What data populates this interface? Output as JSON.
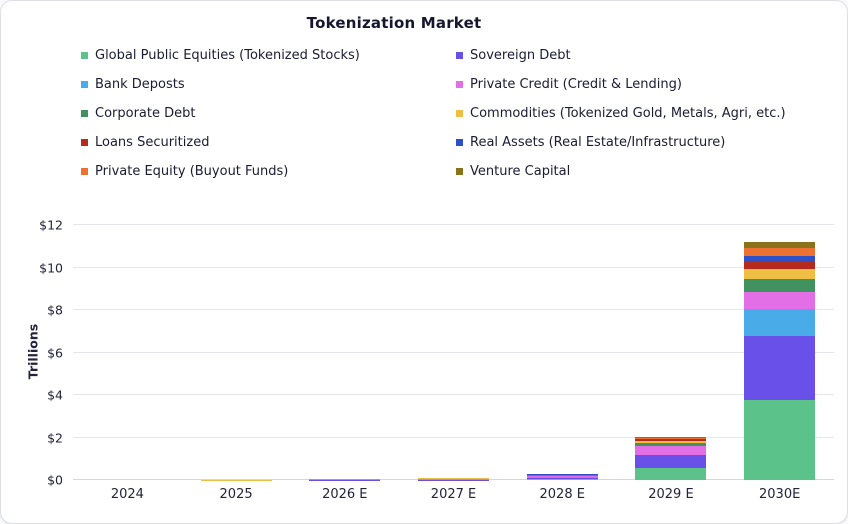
{
  "title": "Tokenization Market",
  "y_axis": {
    "label": "Trillions",
    "tick_labels": [
      "$0",
      "$2",
      "$4",
      "$6",
      "$8",
      "$10",
      "$12"
    ],
    "tick_values": [
      0,
      2,
      4,
      6,
      8,
      10,
      12
    ],
    "max": 12
  },
  "chart_data": {
    "type": "bar",
    "stacked": true,
    "title": "Tokenization Market",
    "xlabel": "",
    "ylabel": "Trillions",
    "ylim": [
      0,
      12
    ],
    "grid": true,
    "legend_position": "top",
    "units": "USD trillions",
    "categories": [
      "2024",
      "2025",
      "2026 E",
      "2027 E",
      "2028 E",
      "2029 E",
      "2030E"
    ],
    "series": [
      {
        "name": "Global Public Equities (Tokenized Stocks)",
        "color": "#5bc389",
        "values": [
          0.002,
          0.003,
          0.005,
          0.01,
          0.05,
          0.58,
          3.75
        ]
      },
      {
        "name": "Sovereign Debt",
        "color": "#6950e8",
        "values": [
          0.003,
          0.005,
          0.06,
          0.02,
          0.09,
          0.6,
          3.05
        ]
      },
      {
        "name": "Bank Deposts",
        "color": "#49abe8",
        "values": [
          0.002,
          0.003,
          0.005,
          0.01,
          0.1,
          0.02,
          1.25
        ]
      },
      {
        "name": "Private Credit (Credit & Lending)",
        "color": "#e26fe5",
        "values": [
          0.01,
          0.015,
          0.07,
          0.17,
          0.13,
          0.4,
          0.8
        ]
      },
      {
        "name": "Corporate Debt",
        "color": "#42925f",
        "values": [
          0.005,
          0.007,
          0.01,
          0.015,
          0.03,
          0.12,
          0.62
        ]
      },
      {
        "name": "Commodities (Tokenized Gold, Metals, Agri, etc.)",
        "color": "#efbe45",
        "values": [
          0.03,
          0.04,
          0.02,
          0.03,
          0.05,
          0.12,
          0.47
        ]
      },
      {
        "name": "Loans Securitized",
        "color": "#b42b1e",
        "values": [
          0.002,
          0.003,
          0.005,
          0.005,
          0.015,
          0.02,
          0.32
        ]
      },
      {
        "name": "Real Assets (Real Estate/Infrastructure)",
        "color": "#2d4fc8",
        "values": [
          0.003,
          0.004,
          0.005,
          0.01,
          0.03,
          0.09,
          0.28
        ]
      },
      {
        "name": "Private Equity (Buyout Funds)",
        "color": "#ed7231",
        "values": [
          0.005,
          0.01,
          0.01,
          0.015,
          0.025,
          0.04,
          0.37
        ]
      },
      {
        "name": "Venture Capital",
        "color": "#8a721b",
        "values": [
          0.01,
          0.015,
          0.015,
          0.02,
          0.03,
          0.04,
          0.28
        ]
      }
    ]
  },
  "colors": {
    "grid": "#e5e5ef",
    "baseline": "#d5d5e2",
    "text": "#23233c",
    "title": "#16162e"
  }
}
